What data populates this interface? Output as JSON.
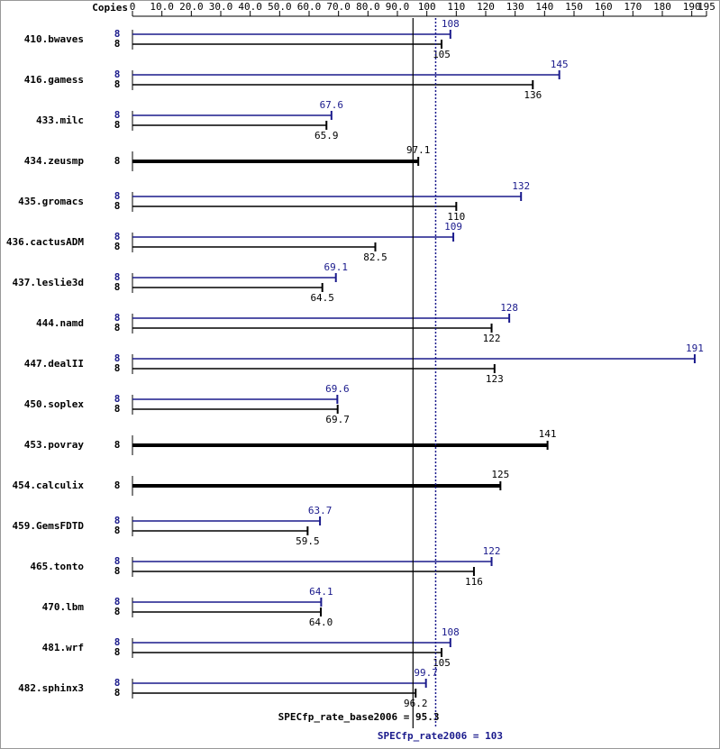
{
  "chart_data": {
    "type": "spec-bar",
    "copies_header": "Copies",
    "categories": [
      "410.bwaves",
      "416.gamess",
      "433.milc",
      "434.zeusmp",
      "435.gromacs",
      "436.cactusADM",
      "437.leslie3d",
      "444.namd",
      "447.dealII",
      "450.soplex",
      "453.povray",
      "454.calculix",
      "459.GemsFDTD",
      "465.tonto",
      "470.lbm",
      "481.wrf",
      "482.sphinx3"
    ],
    "xlim": [
      0,
      195
    ],
    "xticks": [
      0,
      {
        "value": 10,
        "label": "10.0"
      },
      {
        "value": 20,
        "label": "20.0"
      },
      {
        "value": 30,
        "label": "30.0"
      },
      {
        "value": 40,
        "label": "40.0"
      },
      {
        "value": 50,
        "label": "50.0"
      },
      {
        "value": 60,
        "label": "60.0"
      },
      {
        "value": 70,
        "label": "70.0"
      },
      {
        "value": 80,
        "label": "80.0"
      },
      {
        "value": 90,
        "label": "90.0"
      },
      100,
      110,
      120,
      130,
      140,
      150,
      160,
      170,
      180,
      190,
      195
    ],
    "series": [
      {
        "color": "#1a1a8c",
        "copies": [
          8,
          8,
          8,
          null,
          8,
          8,
          8,
          8,
          8,
          8,
          null,
          null,
          8,
          8,
          8,
          8,
          8
        ],
        "values": [
          108,
          145,
          67.6,
          null,
          132,
          109,
          69.1,
          128,
          191,
          69.6,
          null,
          null,
          63.7,
          122,
          64.1,
          108,
          99.7
        ],
        "value_labels": [
          "108",
          "145",
          "67.6",
          null,
          "132",
          "109",
          "69.1",
          "128",
          "191",
          "69.6",
          null,
          null,
          "63.7",
          "122",
          "64.1",
          "108",
          "99.7"
        ]
      },
      {
        "color": "#000000",
        "copies": [
          8,
          8,
          8,
          8,
          8,
          8,
          8,
          8,
          8,
          8,
          8,
          8,
          8,
          8,
          8,
          8,
          8
        ],
        "values": [
          105,
          136,
          65.9,
          97.1,
          110,
          82.5,
          64.5,
          122,
          123,
          69.7,
          141,
          125,
          59.5,
          116,
          64,
          105,
          96.2
        ],
        "value_labels": [
          "105",
          "136",
          "65.9",
          "97.1",
          "110",
          "82.5",
          "64.5",
          "122",
          "123",
          "69.7",
          "141",
          "125",
          "59.5",
          "116",
          "64.0",
          "105",
          "96.2"
        ]
      }
    ],
    "reference_lines": [
      {
        "value": 95.3,
        "label": "SPECfp_rate_base2006 = 95.3",
        "color": "#000000",
        "style": "solid"
      },
      {
        "value": 103,
        "label": "SPECfp_rate2006 = 103",
        "color": "#1a1a8c",
        "style": "dotted"
      }
    ]
  }
}
